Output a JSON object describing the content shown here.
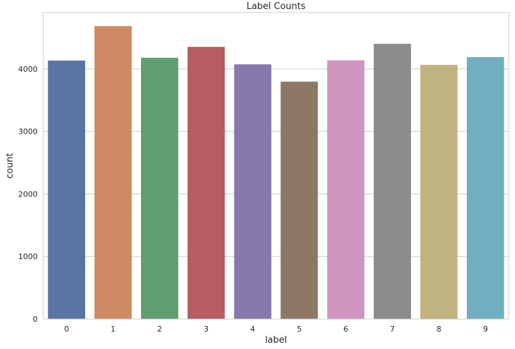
{
  "chart_data": {
    "type": "bar",
    "title": "Label Counts",
    "xlabel": "label",
    "ylabel": "count",
    "categories": [
      "0",
      "1",
      "2",
      "3",
      "4",
      "5",
      "6",
      "7",
      "8",
      "9"
    ],
    "values": [
      4132,
      4684,
      4177,
      4351,
      4072,
      3795,
      4137,
      4401,
      4063,
      4188
    ],
    "colors": [
      "#5875a4",
      "#cc8963",
      "#5f9e6e",
      "#b55d60",
      "#857aab",
      "#8d7866",
      "#d095bf",
      "#8c8c8c",
      "#c1b37f",
      "#71aec0"
    ],
    "ylim": [
      0,
      4900
    ],
    "yticks": [
      0,
      1000,
      2000,
      3000,
      4000
    ],
    "grid": "y"
  }
}
